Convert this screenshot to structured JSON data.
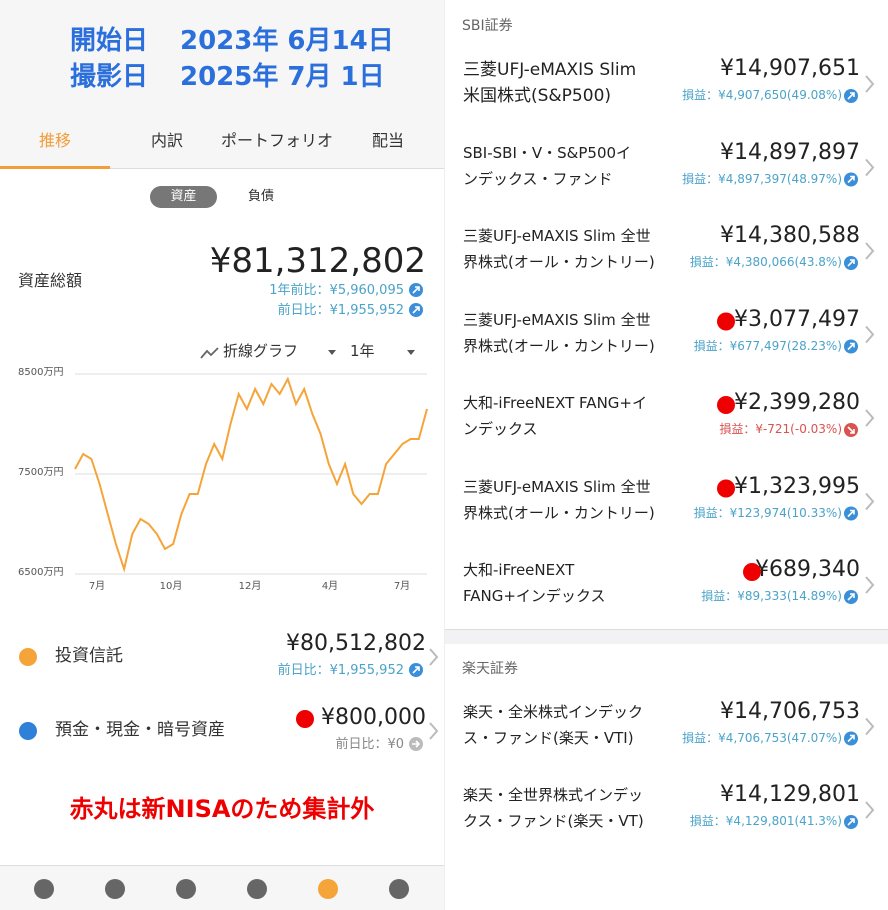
{
  "header": {
    "lines": [
      {
        "label": "開始日",
        "date": "2023年 6月14日"
      },
      {
        "label": "撮影日",
        "date": "2025年 7月 1日"
      }
    ]
  },
  "tabs": [
    "推移",
    "内訳",
    "ポートフォリオ",
    "配当"
  ],
  "toggle": [
    "資産",
    "負債"
  ],
  "total": {
    "label": "資産総額",
    "amount": "¥81,312,802",
    "year_change": "1年前比：¥5,960,095",
    "day_change": "前日比：¥1,955,952"
  },
  "chart_controls": {
    "chart_type": "折線グラフ",
    "period": "1年"
  },
  "chart": {
    "type": "line",
    "color": "#f5a43a",
    "ylim": [
      6500,
      8500
    ],
    "yticks": [
      {
        "value": 8500,
        "label": "8500万円"
      },
      {
        "value": 7500,
        "label": "7500万円"
      },
      {
        "value": 6500,
        "label": "6500万円"
      }
    ],
    "xticks": [
      "7月",
      "10月",
      "12月",
      "4月",
      "7月"
    ],
    "values": [
      7550,
      7700,
      7650,
      7400,
      7100,
      6800,
      6550,
      6900,
      7050,
      7000,
      6900,
      6750,
      6800,
      7100,
      7300,
      7300,
      7600,
      7800,
      7650,
      8000,
      8300,
      8150,
      8350,
      8200,
      8400,
      8300,
      8450,
      8200,
      8350,
      8100,
      7900,
      7600,
      7400,
      7600,
      7300,
      7200,
      7300,
      7300,
      7600,
      7700,
      7800,
      7850,
      7850,
      8150
    ]
  },
  "summary": [
    {
      "name": "投資信託",
      "color": "#f5a43a",
      "amount": "¥80,512,802",
      "change": "前日比：¥1,955,952",
      "nisa": false,
      "trend": "up"
    },
    {
      "name": "預金・現金・暗号資産",
      "color": "#2f80d8",
      "amount": "¥800,000",
      "change": "前日比：¥0",
      "nisa": true,
      "trend": "flat"
    }
  ],
  "note": "赤丸は新NISAのため集計外",
  "sections": [
    {
      "title": "SBI証券",
      "funds": [
        {
          "name": [
            "三菱UFJ-eMAXIS Slim",
            "米国株式(S&P500)"
          ],
          "amount": "¥14,907,651",
          "gain": "損益：¥4,907,650(49.08%)",
          "nisa": false,
          "trend": "up"
        },
        {
          "name": [
            "SBI-SBI・V・S&P500イ",
            "ンデックス・ファンド"
          ],
          "amount": "¥14,897,897",
          "gain": "損益：¥4,897,397(48.97%)",
          "nisa": false,
          "trend": "up"
        },
        {
          "name": [
            "三菱UFJ-eMAXIS Slim 全世",
            "界株式(オール・カントリー)"
          ],
          "amount": "¥14,380,588",
          "gain": "損益：¥4,380,066(43.8%)",
          "nisa": false,
          "trend": "up"
        },
        {
          "name": [
            "三菱UFJ-eMAXIS Slim 全世",
            "界株式(オール・カントリー)"
          ],
          "amount": "¥3,077,497",
          "gain": "損益：¥677,497(28.23%)",
          "nisa": true,
          "trend": "up"
        },
        {
          "name": [
            "大和-iFreeNEXT FANG+イ",
            "ンデックス"
          ],
          "amount": "¥2,399,280",
          "gain": "損益：¥-721(-0.03%)",
          "nisa": true,
          "trend": "down"
        },
        {
          "name": [
            "三菱UFJ-eMAXIS Slim 全世",
            "界株式(オール・カントリー)"
          ],
          "amount": "¥1,323,995",
          "gain": "損益：¥123,974(10.33%)",
          "nisa": true,
          "trend": "up"
        },
        {
          "name": [
            "大和-iFreeNEXT",
            "FANG+インデックス"
          ],
          "amount": "¥689,340",
          "gain": "損益：¥89,333(14.89%)",
          "nisa": true,
          "trend": "up"
        }
      ]
    },
    {
      "title": "楽天証券",
      "funds": [
        {
          "name": [
            "楽天・全米株式インデック",
            "ス・ファンド(楽天・VTI)"
          ],
          "amount": "¥14,706,753",
          "gain": "損益：¥4,706,753(47.07%)",
          "nisa": false,
          "trend": "up"
        },
        {
          "name": [
            "楽天・全世界株式インデッ",
            "クス・ファンド(楽天・VT)"
          ],
          "amount": "¥14,129,801",
          "gain": "損益：¥4,129,801(41.3%)",
          "nisa": false,
          "trend": "up"
        }
      ]
    }
  ]
}
